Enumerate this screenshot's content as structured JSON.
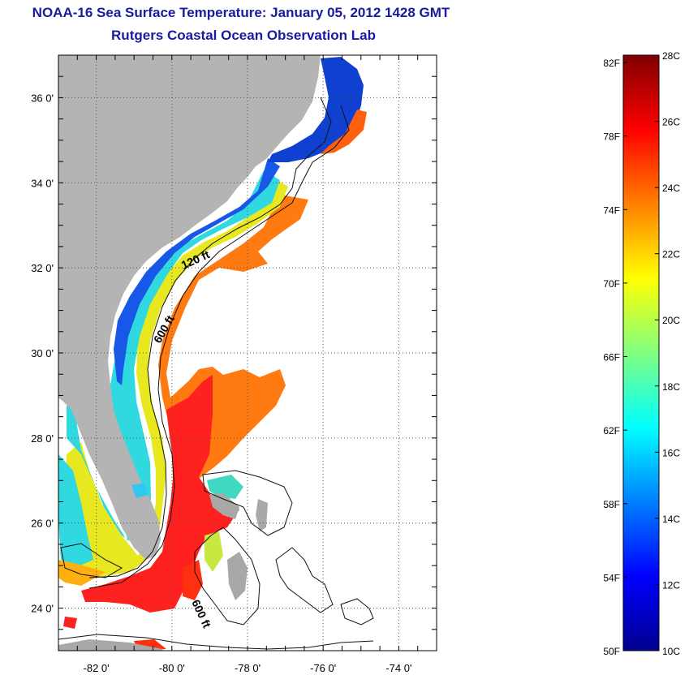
{
  "title": {
    "line1": "NOAA-16 Sea Surface Temperature:  January 05, 2012 1428 GMT",
    "line2": "Rutgers Coastal Ocean Observation Lab"
  },
  "map": {
    "lon_range": [
      -83,
      -73
    ],
    "lat_range": [
      23,
      37
    ],
    "lon_ticks": [
      {
        "value": -82,
        "label": "-82 0'"
      },
      {
        "value": -80,
        "label": "-80 0'"
      },
      {
        "value": -78,
        "label": "-78 0'"
      },
      {
        "value": -76,
        "label": "-76 0'"
      },
      {
        "value": -74,
        "label": "-74 0'"
      }
    ],
    "lat_ticks": [
      {
        "value": 36,
        "label": "36 0'"
      },
      {
        "value": 34,
        "label": "34 0'"
      },
      {
        "value": 32,
        "label": "32 0'"
      },
      {
        "value": 30,
        "label": "30 0'"
      },
      {
        "value": 28,
        "label": "28 0'"
      },
      {
        "value": 26,
        "label": "26 0'"
      },
      {
        "value": 24,
        "label": "24 0'"
      }
    ],
    "contour_labels": [
      "120 ft",
      "600 ft",
      "600 ft"
    ],
    "land_color": "#b4b4b4",
    "grid": "dotted"
  },
  "colorbar": {
    "fahrenheit_labels": [
      "82F",
      "78F",
      "74F",
      "70F",
      "66F",
      "62F",
      "58F",
      "54F",
      "50F"
    ],
    "celsius_labels": [
      "28C",
      "26C",
      "24C",
      "22C",
      "20C",
      "18C",
      "16C",
      "14C",
      "12C",
      "10C"
    ],
    "colormap": "jet",
    "min_c": 10,
    "max_c": 28
  }
}
